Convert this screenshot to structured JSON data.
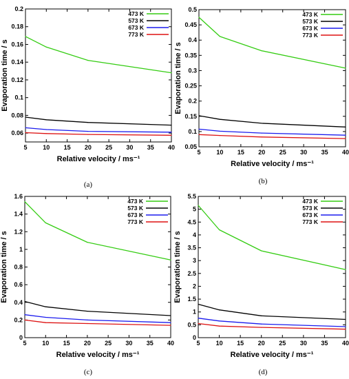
{
  "panel_labels": [
    "(a)",
    "(b)",
    "(c)",
    "(d)"
  ],
  "chart_data": [
    {
      "type": "line",
      "panel": "(a)",
      "xlabel": "Relative velocity / ms⁻¹",
      "ylabel": "Evaporation time / s",
      "xlim": [
        5,
        40
      ],
      "ylim": [
        0.05,
        0.2
      ],
      "xticks": [
        5,
        10,
        15,
        20,
        25,
        30,
        35,
        40
      ],
      "yticks": [
        0.06,
        0.08,
        0.1,
        0.12,
        0.14,
        0.16,
        0.18,
        0.2
      ],
      "ytick_labels": [
        "0.06",
        "0.08",
        "0.1",
        "0.12",
        "0.14",
        "0.16",
        "0.18",
        "0.2"
      ],
      "legend_position": "top-right",
      "grid": false,
      "x": [
        5,
        10,
        20,
        40
      ],
      "series": [
        {
          "name": "473 K",
          "color": "#33cc11",
          "values": [
            0.169,
            0.157,
            0.142,
            0.128
          ]
        },
        {
          "name": "573 K",
          "color": "#000000",
          "values": [
            0.078,
            0.075,
            0.072,
            0.069
          ]
        },
        {
          "name": "673 K",
          "color": "#1a1aee",
          "values": [
            0.066,
            0.064,
            0.062,
            0.061
          ]
        },
        {
          "name": "773 K",
          "color": "#dd1111",
          "values": [
            0.0605,
            0.0595,
            0.0585,
            0.0575
          ]
        }
      ]
    },
    {
      "type": "line",
      "panel": "(b)",
      "xlabel": "Relative velocity / ms⁻¹",
      "ylabel": "Evaporation time / s",
      "xlim": [
        5,
        40
      ],
      "ylim": [
        0.05,
        0.5
      ],
      "xticks": [
        5,
        10,
        15,
        20,
        25,
        30,
        35,
        40
      ],
      "yticks": [
        0.05,
        0.1,
        0.15,
        0.2,
        0.25,
        0.3,
        0.35,
        0.4,
        0.45,
        0.5
      ],
      "ytick_labels": [
        "0.05",
        "0.1",
        "0.15",
        "0.2",
        "0.25",
        "0.3",
        "0.35",
        "0.4",
        "0.45",
        "0.5"
      ],
      "legend_position": "top-right",
      "grid": false,
      "x": [
        5,
        10,
        20,
        40
      ],
      "series": [
        {
          "name": "473 K",
          "color": "#33cc11",
          "values": [
            0.475,
            0.412,
            0.365,
            0.308
          ]
        },
        {
          "name": "573 K",
          "color": "#000000",
          "values": [
            0.152,
            0.14,
            0.127,
            0.115
          ]
        },
        {
          "name": "673 K",
          "color": "#1a1aee",
          "values": [
            0.108,
            0.101,
            0.095,
            0.088
          ]
        },
        {
          "name": "773 K",
          "color": "#dd1111",
          "values": [
            0.09,
            0.087,
            0.082,
            0.077
          ]
        }
      ]
    },
    {
      "type": "line",
      "panel": "(c)",
      "xlabel": "Relative velocity / ms⁻¹",
      "ylabel": "Evaporation time / s",
      "xlim": [
        5,
        40
      ],
      "ylim": [
        0,
        1.6
      ],
      "xticks": [
        5,
        10,
        15,
        20,
        25,
        30,
        35,
        40
      ],
      "yticks": [
        0,
        0.2,
        0.4,
        0.6,
        0.8,
        1,
        1.2,
        1.4,
        1.6
      ],
      "ytick_labels": [
        "0",
        "0.2",
        "0.4",
        "0.6",
        "0.8",
        "1",
        "1.2",
        "1.4",
        "1.6"
      ],
      "legend_position": "top-right",
      "grid": false,
      "x": [
        5,
        10,
        20,
        40
      ],
      "series": [
        {
          "name": "473 K",
          "color": "#33cc11",
          "values": [
            1.54,
            1.3,
            1.08,
            0.88
          ]
        },
        {
          "name": "573 K",
          "color": "#000000",
          "values": [
            0.41,
            0.35,
            0.3,
            0.25
          ]
        },
        {
          "name": "673 K",
          "color": "#1a1aee",
          "values": [
            0.26,
            0.23,
            0.2,
            0.17
          ]
        },
        {
          "name": "773 K",
          "color": "#dd1111",
          "values": [
            0.2,
            0.17,
            0.16,
            0.14
          ]
        }
      ]
    },
    {
      "type": "line",
      "panel": "(d)",
      "xlabel": "Relative velocity / ms⁻¹",
      "ylabel": "Evaporation time / s",
      "xlim": [
        5,
        40
      ],
      "ylim": [
        0,
        5.5
      ],
      "xticks": [
        5,
        10,
        15,
        20,
        25,
        30,
        35,
        40
      ],
      "yticks": [
        0,
        0.5,
        1,
        1.5,
        2,
        2.5,
        3,
        3.5,
        4,
        4.5,
        5,
        5.5
      ],
      "ytick_labels": [
        "0",
        "0.5",
        "1",
        "1.5",
        "2",
        "2.5",
        "3",
        "3.5",
        "4",
        "4.5",
        "5",
        "5.5"
      ],
      "legend_position": "top-right",
      "grid": false,
      "x": [
        5,
        10,
        20,
        40
      ],
      "series": [
        {
          "name": "473 K",
          "color": "#33cc11",
          "values": [
            5.15,
            4.2,
            3.38,
            2.65
          ]
        },
        {
          "name": "573 K",
          "color": "#000000",
          "values": [
            1.3,
            1.08,
            0.85,
            0.71
          ]
        },
        {
          "name": "673 K",
          "color": "#1a1aee",
          "values": [
            0.76,
            0.65,
            0.53,
            0.43
          ]
        },
        {
          "name": "773 K",
          "color": "#dd1111",
          "values": [
            0.55,
            0.45,
            0.4,
            0.33
          ]
        }
      ]
    }
  ]
}
